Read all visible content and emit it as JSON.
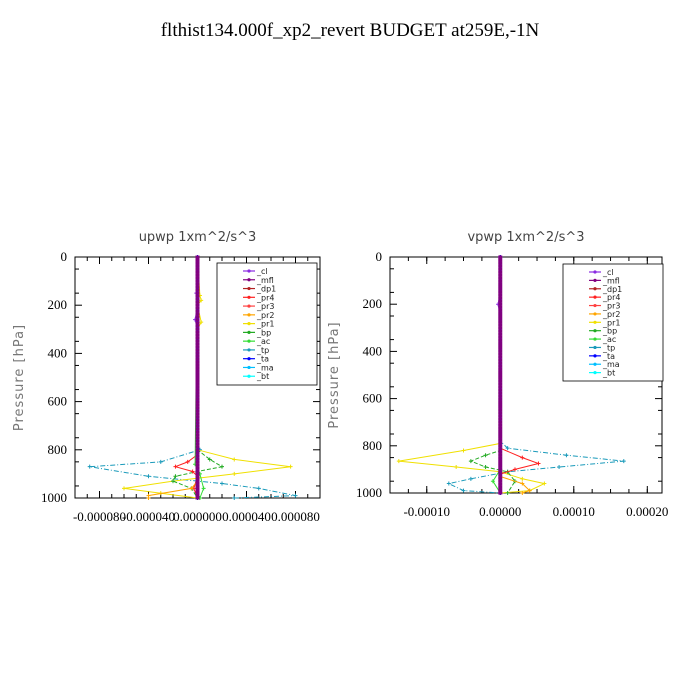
{
  "figure_title": "flthist134.000f_xp2_revert  BUDGET at259E,-1N",
  "series_styles": [
    {
      "name": "_cl",
      "color": "#8a2be2",
      "marker": "+"
    },
    {
      "name": "_mfl",
      "color": "#800080",
      "marker": "s"
    },
    {
      "name": "_dp1",
      "color": "#b22222",
      "marker": "+"
    },
    {
      "name": "_pr4",
      "color": "#ff2020",
      "marker": "x"
    },
    {
      "name": "_pr3",
      "color": "#ff4040",
      "marker": "x"
    },
    {
      "name": "_pr2",
      "color": "#ffa500",
      "marker": "s"
    },
    {
      "name": "_pr1",
      "color": "#f0e000",
      "marker": "s"
    },
    {
      "name": "_bp",
      "color": "#22aa22",
      "marker": "x"
    },
    {
      "name": "_ac",
      "color": "#33dd33",
      "marker": "+"
    },
    {
      "name": "_tp",
      "color": "#1a9aba",
      "marker": "+"
    },
    {
      "name": "_ta",
      "color": "#0000ff",
      "marker": "+"
    },
    {
      "name": "_ma",
      "color": "#00bfff",
      "marker": "-"
    },
    {
      "name": "_bt",
      "color": "#00ffff",
      "marker": "o"
    }
  ],
  "chart_data": [
    {
      "type": "line",
      "title": "upwp   1xm^2/s^3",
      "ylabel": "Pressure [hPa]",
      "xlim": [
        -0.0001,
        0.0001
      ],
      "ylim": [
        1000,
        0
      ],
      "y_inverted": true,
      "x_ticks": [
        -8e-05,
        -4e-05,
        0.0,
        4e-05,
        8e-05
      ],
      "x_tick_labels": [
        "-0.000080",
        "-0.000040",
        "0.000000",
        "0.000040",
        "0.000080"
      ],
      "y_ticks": [
        0,
        200,
        400,
        600,
        800,
        1000
      ],
      "y_tick_labels": [
        "0",
        "200",
        "400",
        "600",
        "800",
        "1000"
      ],
      "legend_position": "top-right",
      "legend": [
        "_cl",
        "_mfl",
        "_dp1",
        "_pr4",
        "_pr3",
        "_pr2",
        "_pr1",
        "_bp",
        "_ac",
        "_tp",
        "_ta",
        "_ma",
        "_bt"
      ],
      "series": [
        {
          "name": "_tp",
          "points": [
            [
              0,
              0
            ],
            [
              0,
              780
            ],
            [
              2e-06,
              800
            ],
            [
              -3e-05,
              850
            ],
            [
              -8.8e-05,
              870
            ],
            [
              -4e-05,
              910
            ],
            [
              2e-05,
              940
            ],
            [
              5e-05,
              960
            ],
            [
              8e-05,
              990
            ],
            [
              3e-05,
              1000
            ]
          ]
        },
        {
          "name": "_pr1",
          "points": [
            [
              0,
              0
            ],
            [
              2e-06,
              160
            ],
            [
              3e-06,
              180
            ],
            [
              0,
              200
            ],
            [
              3e-06,
              270
            ],
            [
              0,
              300
            ],
            [
              0,
              800
            ],
            [
              3e-05,
              840
            ],
            [
              7.6e-05,
              870
            ],
            [
              3e-05,
              900
            ],
            [
              -2e-05,
              930
            ],
            [
              -6e-05,
              960
            ],
            [
              -3e-05,
              980
            ],
            [
              0,
              1000
            ]
          ]
        },
        {
          "name": "_bp",
          "points": [
            [
              0,
              0
            ],
            [
              0,
              800
            ],
            [
              1e-05,
              840
            ],
            [
              2e-05,
              870
            ],
            [
              0,
              890
            ],
            [
              -1.8e-05,
              910
            ],
            [
              -2e-05,
              930
            ],
            [
              -5e-06,
              960
            ],
            [
              0,
              1000
            ]
          ]
        },
        {
          "name": "_pr4",
          "points": [
            [
              0,
              0
            ],
            [
              0,
              820
            ],
            [
              -8e-06,
              850
            ],
            [
              -1.8e-05,
              870
            ],
            [
              -4e-06,
              890
            ],
            [
              0,
              910
            ],
            [
              -3e-06,
              960
            ],
            [
              0,
              1000
            ]
          ]
        },
        {
          "name": "_pr2",
          "points": [
            [
              0,
              0
            ],
            [
              0,
              930
            ],
            [
              -5e-06,
              960
            ],
            [
              -4e-05,
              990
            ],
            [
              -4e-05,
              1000
            ]
          ]
        },
        {
          "name": "_ac",
          "points": [
            [
              0,
              0
            ],
            [
              -2e-06,
              860
            ],
            [
              2e-06,
              900
            ],
            [
              5e-06,
              960
            ],
            [
              2e-06,
              1000
            ]
          ]
        },
        {
          "name": "_cl",
          "points": [
            [
              0,
              0
            ],
            [
              -1e-06,
              150
            ],
            [
              0,
              200
            ],
            [
              -2e-06,
              260
            ],
            [
              0,
              300
            ],
            [
              0,
              1000
            ]
          ]
        },
        {
          "name": "_mfl",
          "points": [
            [
              0,
              0
            ],
            [
              0,
              1000
            ]
          ]
        },
        {
          "name": "_ta",
          "points": [
            [
              0,
              0
            ],
            [
              0,
              1000
            ]
          ]
        }
      ]
    },
    {
      "type": "line",
      "title": "vpwp   1xm^2/s^3",
      "ylabel": "Pressure [hPa]",
      "xlim": [
        -0.00015,
        0.00022
      ],
      "ylim": [
        1000,
        0
      ],
      "y_inverted": true,
      "x_ticks": [
        -0.0001,
        0.0,
        0.0001,
        0.0002
      ],
      "x_tick_labels": [
        "-0.00010",
        "0.00000",
        "0.00010",
        "0.00020"
      ],
      "y_ticks": [
        0,
        200,
        400,
        600,
        800,
        1000
      ],
      "y_tick_labels": [
        "0",
        "200",
        "400",
        "600",
        "800",
        "1000"
      ],
      "legend_position": "top-right",
      "legend": [
        "_cl",
        "_mfl",
        "_dp1",
        "_pr4",
        "_pr3",
        "_pr2",
        "_pr1",
        "_bp",
        "_ac",
        "_tp",
        "_ta",
        "_ma",
        "_bt"
      ],
      "series": [
        {
          "name": "_tp",
          "points": [
            [
              0,
              0
            ],
            [
              0,
              780
            ],
            [
              1e-05,
              810
            ],
            [
              9e-05,
              840
            ],
            [
              0.000168,
              865
            ],
            [
              8e-05,
              890
            ],
            [
              1e-05,
              910
            ],
            [
              -4e-05,
              940
            ],
            [
              -7e-05,
              960
            ],
            [
              -5e-05,
              990
            ],
            [
              0,
              1000
            ]
          ]
        },
        {
          "name": "_pr1",
          "points": [
            [
              0,
              0
            ],
            [
              0,
              790
            ],
            [
              -5e-05,
              820
            ],
            [
              -0.000138,
              865
            ],
            [
              -6e-05,
              890
            ],
            [
              0,
              910
            ],
            [
              3e-05,
              940
            ],
            [
              6e-05,
              960
            ],
            [
              4e-05,
              990
            ],
            [
              0,
              1000
            ]
          ]
        },
        {
          "name": "_bp",
          "points": [
            [
              0,
              0
            ],
            [
              0,
              820
            ],
            [
              -2e-05,
              840
            ],
            [
              -4e-05,
              865
            ],
            [
              -2e-05,
              890
            ],
            [
              1e-05,
              910
            ],
            [
              2e-05,
              950
            ],
            [
              1e-05,
              1000
            ]
          ]
        },
        {
          "name": "_pr4",
          "points": [
            [
              0,
              0
            ],
            [
              0,
              810
            ],
            [
              3e-05,
              850
            ],
            [
              5.2e-05,
              875
            ],
            [
              2e-05,
              900
            ],
            [
              0,
              920
            ],
            [
              0,
              1000
            ]
          ]
        },
        {
          "name": "_pr2",
          "points": [
            [
              0,
              0
            ],
            [
              0,
              930
            ],
            [
              3e-05,
              960
            ],
            [
              4e-05,
              990
            ],
            [
              3e-05,
              1000
            ]
          ]
        },
        {
          "name": "_ac",
          "points": [
            [
              0,
              0
            ],
            [
              0,
              900
            ],
            [
              -1e-05,
              950
            ],
            [
              0,
              1000
            ]
          ]
        },
        {
          "name": "_cl",
          "points": [
            [
              0,
              0
            ],
            [
              0,
              150
            ],
            [
              -3e-06,
              200
            ],
            [
              0,
              250
            ],
            [
              0,
              1000
            ]
          ]
        },
        {
          "name": "_mfl",
          "points": [
            [
              0,
              0
            ],
            [
              0,
              1000
            ]
          ]
        },
        {
          "name": "_ta",
          "points": [
            [
              0,
              0
            ],
            [
              0,
              1000
            ]
          ]
        }
      ]
    }
  ]
}
